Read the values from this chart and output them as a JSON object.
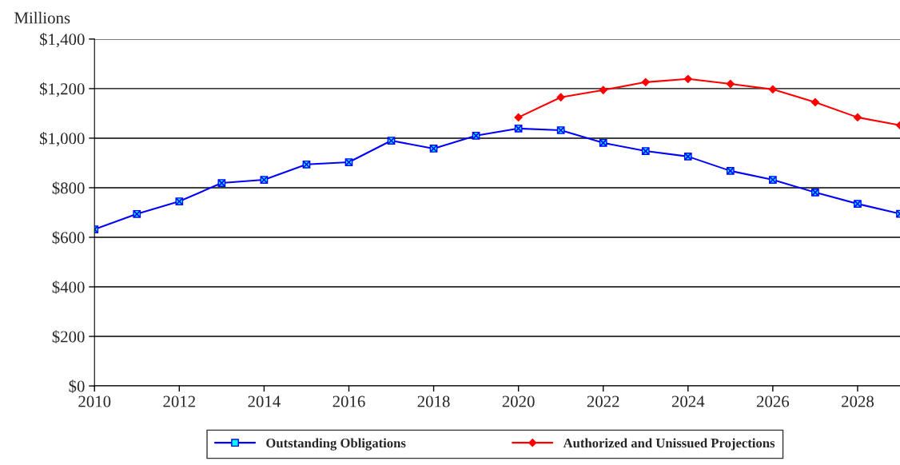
{
  "chart_data": {
    "type": "line",
    "ylabel": "Millions",
    "x": [
      2010,
      2011,
      2012,
      2013,
      2014,
      2015,
      2016,
      2017,
      2018,
      2019,
      2020,
      2021,
      2022,
      2023,
      2024,
      2025,
      2026,
      2027,
      2028,
      2029
    ],
    "series": [
      {
        "name": "Outstanding Obligations",
        "color": "#0000ff",
        "marker": "square",
        "values": [
          632,
          694,
          745,
          819,
          832,
          894,
          903,
          990,
          958,
          1010,
          1039,
          1032,
          981,
          948,
          926,
          868,
          832,
          781,
          735,
          695
        ]
      },
      {
        "name": "Authorized and Unissued Projections",
        "color": "#ff0000",
        "marker": "diamond",
        "values": [
          null,
          null,
          null,
          null,
          null,
          null,
          null,
          null,
          null,
          null,
          1084,
          1165,
          1194,
          1226,
          1239,
          1219,
          1197,
          1145,
          1084,
          1052
        ]
      }
    ],
    "xlim": [
      2010,
      2029
    ],
    "xticks": [
      2010,
      2012,
      2014,
      2016,
      2018,
      2020,
      2022,
      2024,
      2026,
      2028
    ],
    "ylim": [
      0,
      1400
    ],
    "yticks": [
      {
        "value": 0,
        "label": "$0"
      },
      {
        "value": 200,
        "label": "$200"
      },
      {
        "value": 400,
        "label": "$400"
      },
      {
        "value": 600,
        "label": "$600"
      },
      {
        "value": 800,
        "label": "$800"
      },
      {
        "value": 1000,
        "label": "$1,000"
      },
      {
        "value": 1200,
        "label": "$1,200"
      },
      {
        "value": 1400,
        "label": "$1,400"
      }
    ],
    "grid": "y",
    "legend": "bottom",
    "line_style": "solid"
  }
}
